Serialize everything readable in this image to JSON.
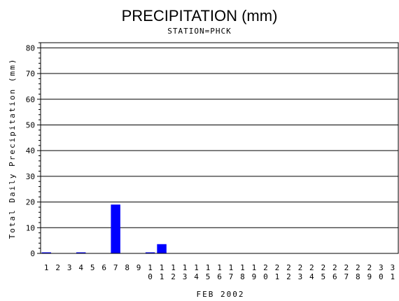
{
  "chart_data": {
    "type": "bar",
    "title": "PRECIPITATION (mm)",
    "subtitle": "STATION=PHCK",
    "ylabel": "Total Daily Precipitation (mm)",
    "xlabel": "FEB 2002",
    "ylim": [
      0,
      82
    ],
    "yticks": [
      0,
      10,
      20,
      30,
      40,
      50,
      60,
      70,
      80
    ],
    "grid": true,
    "bar_color": "#0000ff",
    "categories": [
      "1",
      "2",
      "3",
      "4",
      "5",
      "6",
      "7",
      "8",
      "9",
      "10",
      "11",
      "12",
      "13",
      "14",
      "15",
      "16",
      "17",
      "18",
      "19",
      "20",
      "21",
      "22",
      "23",
      "24",
      "25",
      "26",
      "27",
      "28",
      "29",
      "30",
      "31"
    ],
    "values": [
      0.3,
      0,
      0,
      0.3,
      0,
      0,
      19,
      0,
      0,
      0.3,
      3.6,
      0,
      0,
      0,
      0,
      0,
      0,
      0,
      0,
      0,
      0,
      0,
      0,
      0,
      0,
      0,
      0,
      0,
      0,
      0,
      0
    ]
  }
}
